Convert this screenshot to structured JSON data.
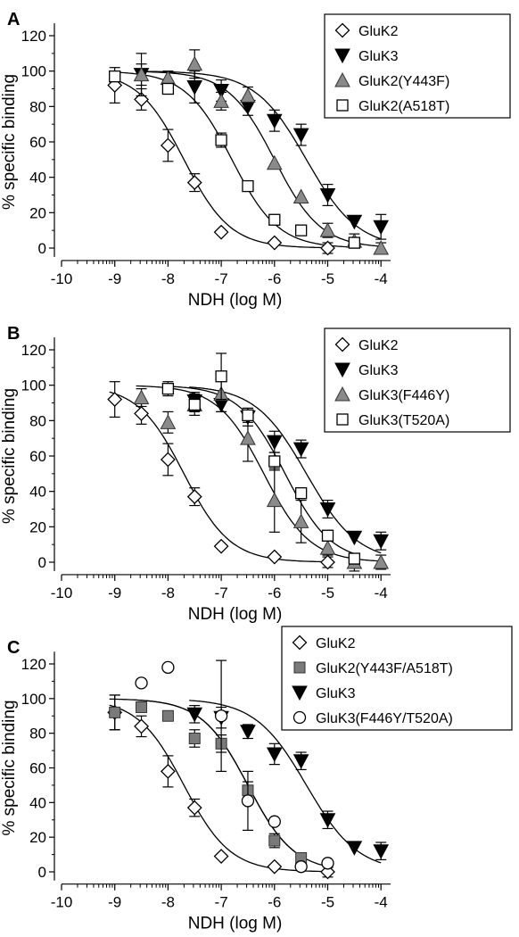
{
  "chart_data": [
    {
      "type": "scatter",
      "panel_label": "A",
      "xlabel": "NDH (log M)",
      "ylabel": "% specific binding",
      "xlim": [
        -10,
        -3.8
      ],
      "ylim": [
        -5,
        125
      ],
      "xticks": [
        -10,
        -9,
        -8,
        -7,
        -6,
        -5,
        -4
      ],
      "yticks": [
        0,
        20,
        40,
        60,
        80,
        100,
        120
      ],
      "legend_position": "top-right",
      "series": [
        {
          "name": "GluK2",
          "marker": "diamond-open",
          "x": [
            -9,
            -8.5,
            -8,
            -7.5,
            -7,
            -6,
            -5
          ],
          "y": [
            92,
            84,
            58,
            37,
            9,
            3,
            0
          ],
          "err": [
            10,
            6,
            9,
            5,
            0,
            0,
            3
          ],
          "fit_logIC50": -7.7,
          "fit_hill": 1.0
        },
        {
          "name": "GluK3",
          "marker": "triangle-down-filled",
          "x": [
            -8.5,
            -7.5,
            -7,
            -6.5,
            -6,
            -5.5,
            -5,
            -4.5,
            -4
          ],
          "y": [
            98,
            91,
            89,
            80,
            72,
            64,
            30,
            15,
            12
          ],
          "err": [
            12,
            9,
            6,
            5,
            6,
            6,
            6,
            0,
            7
          ],
          "fit_logIC50": -5.4,
          "fit_hill": 0.9
        },
        {
          "name": "GluK2(Y443F)",
          "marker": "triangle-up-gray",
          "x": [
            -8.5,
            -8,
            -7.5,
            -7,
            -6.5,
            -6,
            -5.5,
            -5,
            -4.5,
            -4
          ],
          "y": [
            98,
            96,
            104,
            83,
            86,
            48,
            29,
            10,
            4,
            0
          ],
          "err": [
            6,
            4,
            8,
            5,
            5,
            0,
            0,
            4,
            4,
            3
          ],
          "fit_logIC50": -6.0,
          "fit_hill": 1.0
        },
        {
          "name": "GluK2(A518T)",
          "marker": "square-open",
          "x": [
            -9,
            -8,
            -7,
            -6.5,
            -6,
            -5.5,
            -4.5
          ],
          "y": [
            97,
            90,
            61,
            35,
            16,
            10,
            3
          ],
          "err": [
            3,
            3,
            4,
            0,
            0,
            0,
            0
          ],
          "fit_logIC50": -6.8,
          "fit_hill": 1.0
        }
      ]
    },
    {
      "type": "scatter",
      "panel_label": "B",
      "xlabel": "NDH (log M)",
      "ylabel": "% specific binding",
      "xlim": [
        -10,
        -3.8
      ],
      "ylim": [
        -5,
        125
      ],
      "xticks": [
        -10,
        -9,
        -8,
        -7,
        -6,
        -5,
        -4
      ],
      "yticks": [
        0,
        20,
        40,
        60,
        80,
        100,
        120
      ],
      "legend_position": "top-right",
      "series": [
        {
          "name": "GluK2",
          "marker": "diamond-open",
          "x": [
            -9,
            -8.5,
            -8,
            -7.5,
            -7,
            -6,
            -5
          ],
          "y": [
            92,
            84,
            58,
            37,
            9,
            3,
            0
          ],
          "err": [
            10,
            6,
            9,
            5,
            0,
            0,
            3
          ],
          "fit_logIC50": -7.7,
          "fit_hill": 1.0
        },
        {
          "name": "GluK3",
          "marker": "triangle-down-filled",
          "x": [
            -7.5,
            -7,
            -6.5,
            -6,
            -5.5,
            -5,
            -4.5,
            -4
          ],
          "y": [
            91,
            89,
            82,
            68,
            64,
            30,
            14,
            12
          ],
          "err": [
            5,
            4,
            5,
            6,
            5,
            5,
            0,
            5
          ],
          "fit_logIC50": -5.4,
          "fit_hill": 0.9
        },
        {
          "name": "GluK3(F446Y)",
          "marker": "triangle-up-gray",
          "x": [
            -8.5,
            -8,
            -7.5,
            -7,
            -6.5,
            -6,
            -5.5,
            -5,
            -4.5,
            -4
          ],
          "y": [
            93,
            79,
            89,
            95,
            70,
            35,
            23,
            8,
            0,
            0
          ],
          "err": [
            5,
            6,
            6,
            10,
            13,
            18,
            12,
            4,
            5,
            4
          ],
          "fit_logIC50": -6.2,
          "fit_hill": 1.0
        },
        {
          "name": "GluK3(T520A)",
          "marker": "square-open",
          "x": [
            -8,
            -7.5,
            -7,
            -6.5,
            -6,
            -5.5,
            -5,
            -4.5
          ],
          "y": [
            98,
            89,
            105,
            83,
            57,
            39,
            15,
            2
          ],
          "err": [
            4,
            4,
            13,
            4,
            5,
            3,
            3,
            3
          ],
          "fit_logIC50": -5.8,
          "fit_hill": 1.0
        }
      ]
    },
    {
      "type": "scatter",
      "panel_label": "C",
      "xlabel": "NDH (log M)",
      "ylabel": "% specific binding",
      "xlim": [
        -10,
        -3.8
      ],
      "ylim": [
        -5,
        125
      ],
      "xticks": [
        -10,
        -9,
        -8,
        -7,
        -6,
        -5,
        -4
      ],
      "yticks": [
        0,
        20,
        40,
        60,
        80,
        100,
        120
      ],
      "legend_position": "top-right",
      "series": [
        {
          "name": "GluK2",
          "marker": "diamond-open",
          "x": [
            -9,
            -8.5,
            -8,
            -7.5,
            -7,
            -6,
            -5
          ],
          "y": [
            92,
            84,
            58,
            37,
            9,
            3,
            0
          ],
          "err": [
            10,
            6,
            9,
            5,
            0,
            0,
            3
          ],
          "fit_logIC50": -7.7,
          "fit_hill": 1.0
        },
        {
          "name": "GluK2(Y443F/A518T)",
          "marker": "square-filled-gray",
          "x": [
            -9,
            -8.5,
            -8,
            -7.5,
            -7,
            -6.5,
            -6,
            -5.5
          ],
          "y": [
            92,
            95,
            90,
            77,
            74,
            47,
            18,
            8
          ],
          "err": [
            10,
            3,
            0,
            5,
            5,
            5,
            4,
            0
          ],
          "fit_logIC50": -6.5,
          "fit_hill": 1.0
        },
        {
          "name": "GluK3",
          "marker": "triangle-down-filled",
          "x": [
            -7.5,
            -7,
            -6.5,
            -6,
            -5.5,
            -5,
            -4.5,
            -4
          ],
          "y": [
            91,
            89,
            81,
            68,
            64,
            30,
            14,
            12
          ],
          "err": [
            5,
            6,
            4,
            6,
            5,
            5,
            0,
            5
          ],
          "fit_logIC50": -5.4,
          "fit_hill": 0.9
        },
        {
          "name": "GluK3(F446Y/T520A)",
          "marker": "circle-open",
          "x": [
            -8.5,
            -8,
            -7,
            -6.5,
            -6,
            -5.5,
            -5
          ],
          "y": [
            109,
            118,
            90,
            41,
            29,
            3,
            5
          ],
          "err": [
            0,
            0,
            32,
            17,
            0,
            0,
            0
          ],
          "fit_logIC50": -6.5,
          "fit_hill": 1.0
        }
      ]
    }
  ]
}
